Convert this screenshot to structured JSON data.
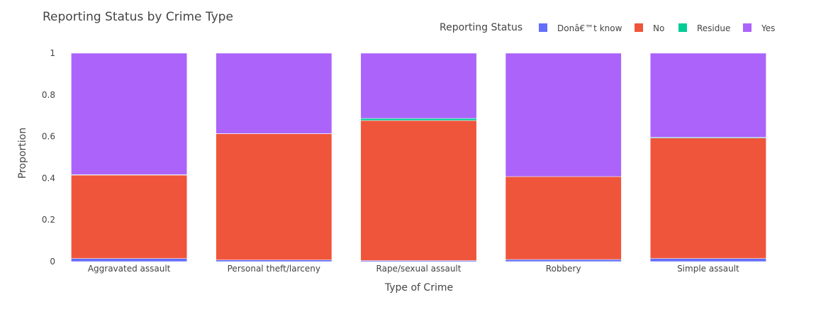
{
  "chart_data": {
    "type": "bar",
    "stacked": true,
    "title": "Reporting Status by Crime Type",
    "xlabel": "Type of Crime",
    "ylabel": "Proportion",
    "ylim": [
      0,
      1
    ],
    "yticks": [
      0,
      0.2,
      0.4,
      0.6,
      0.8,
      1
    ],
    "ytick_labels": [
      "0",
      "0.2",
      "0.4",
      "0.6",
      "0.8",
      "1"
    ],
    "grid": false,
    "legend": {
      "title": "Reporting Status",
      "placement": "top-right",
      "orientation": "horizontal"
    },
    "categories": [
      "Aggravated assault",
      "Personal theft/larceny",
      "Rape/sexual assault",
      "Robbery",
      "Simple assault"
    ],
    "series": [
      {
        "name": "Donâ€™t know",
        "color": "#636efa",
        "values": [
          0.015,
          0.008,
          0.005,
          0.01,
          0.015
        ]
      },
      {
        "name": "No",
        "color": "#ef553b",
        "values": [
          0.4,
          0.605,
          0.672,
          0.398,
          0.578
        ]
      },
      {
        "name": "Residue",
        "color": "#00cc96",
        "values": [
          0.002,
          0.001,
          0.01,
          0.0,
          0.003
        ]
      },
      {
        "name": "Yes",
        "color": "#ab63fa",
        "values": [
          0.583,
          0.386,
          0.313,
          0.592,
          0.404
        ]
      }
    ]
  }
}
